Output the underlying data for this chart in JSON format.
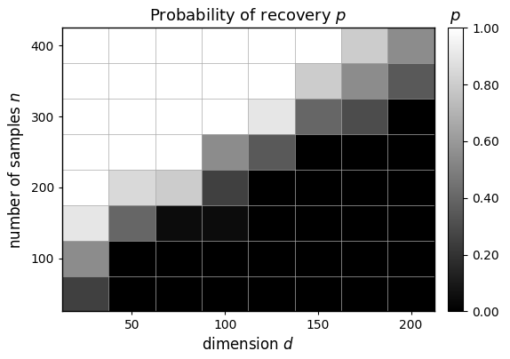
{
  "title": "Probability of recovery $p$",
  "xlabel": "dimension $d$",
  "ylabel": "number of samples $n$",
  "colorbar_label": "$p$",
  "d_values": [
    25,
    50,
    75,
    100,
    125,
    150,
    175,
    200
  ],
  "n_values": [
    50,
    100,
    150,
    200,
    250,
    300,
    350,
    400
  ],
  "data": [
    [
      0.25,
      0.0,
      0.0,
      0.0,
      0.0,
      0.0,
      0.0,
      0.0
    ],
    [
      0.55,
      0.0,
      0.0,
      0.0,
      0.0,
      0.0,
      0.0,
      0.0
    ],
    [
      0.9,
      0.4,
      0.05,
      0.05,
      0.0,
      0.0,
      0.0,
      0.0
    ],
    [
      1.0,
      0.85,
      0.8,
      0.25,
      0.0,
      0.0,
      0.0,
      0.0
    ],
    [
      1.0,
      1.0,
      1.0,
      0.55,
      0.35,
      0.0,
      0.0,
      0.0
    ],
    [
      1.0,
      1.0,
      1.0,
      1.0,
      0.9,
      0.4,
      0.3,
      0.0
    ],
    [
      1.0,
      1.0,
      1.0,
      1.0,
      1.0,
      0.8,
      0.55,
      0.35
    ],
    [
      1.0,
      1.0,
      1.0,
      1.0,
      1.0,
      1.0,
      0.8,
      0.55
    ]
  ],
  "vmin": 0.0,
  "vmax": 1.0,
  "cmap": "gray",
  "grid_color": "#aaaaaa",
  "figsize": [
    5.74,
    4.04
  ],
  "dpi": 100,
  "xticks": [
    50,
    100,
    150,
    200
  ],
  "yticks": [
    100,
    200,
    300,
    400
  ],
  "colorbar_ticks": [
    0.0,
    0.2,
    0.4,
    0.6,
    0.8,
    1.0
  ],
  "colorbar_tick_labels": [
    "0.00",
    "0.20",
    "0.40",
    "0.60",
    "0.80",
    "1.00"
  ]
}
